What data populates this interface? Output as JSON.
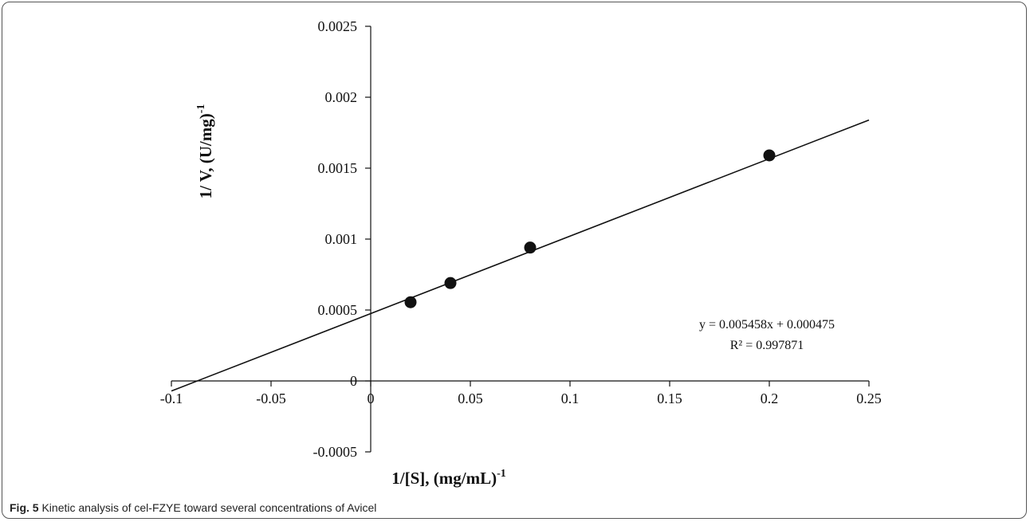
{
  "chart_data": {
    "type": "scatter",
    "title": "",
    "xlabel": "1/[S], (mg/mL)",
    "xlabel_sup": "-1",
    "ylabel": "1/ V, (U/mg)",
    "ylabel_sup": "-1",
    "xlim": [
      -0.1,
      0.25
    ],
    "ylim": [
      -0.0005,
      0.0025
    ],
    "x_ticks": [
      -0.1,
      -0.05,
      0,
      0.05,
      0.1,
      0.15,
      0.2,
      0.25
    ],
    "x_tick_labels": [
      "-0.1",
      "-0.05",
      "0",
      "0.05",
      "0.1",
      "0.15",
      "0.2",
      "0.25"
    ],
    "y_ticks": [
      -0.0005,
      0,
      0.0005,
      0.001,
      0.0015,
      0.002,
      0.0025
    ],
    "y_tick_labels": [
      "-0.0005",
      "0",
      "0.0005",
      "0.001",
      "0.0015",
      "0.002",
      "0.0025"
    ],
    "grid": false,
    "series": [
      {
        "x": [
          0.02,
          0.04,
          0.08,
          0.2
        ],
        "y": [
          0.000555,
          0.00069,
          0.00094,
          0.00159
        ]
      }
    ],
    "trendline": {
      "slope": 0.005458,
      "intercept": 0.000475,
      "x_range": [
        -0.1,
        0.25
      ],
      "equation": "y = 0.005458x + 0.000475",
      "r_squared": "R² = 0.997871"
    }
  },
  "caption": {
    "label": "Fig. 5",
    "text": "Kinetic analysis of cel-FZYE toward several concentrations of Avicel"
  }
}
